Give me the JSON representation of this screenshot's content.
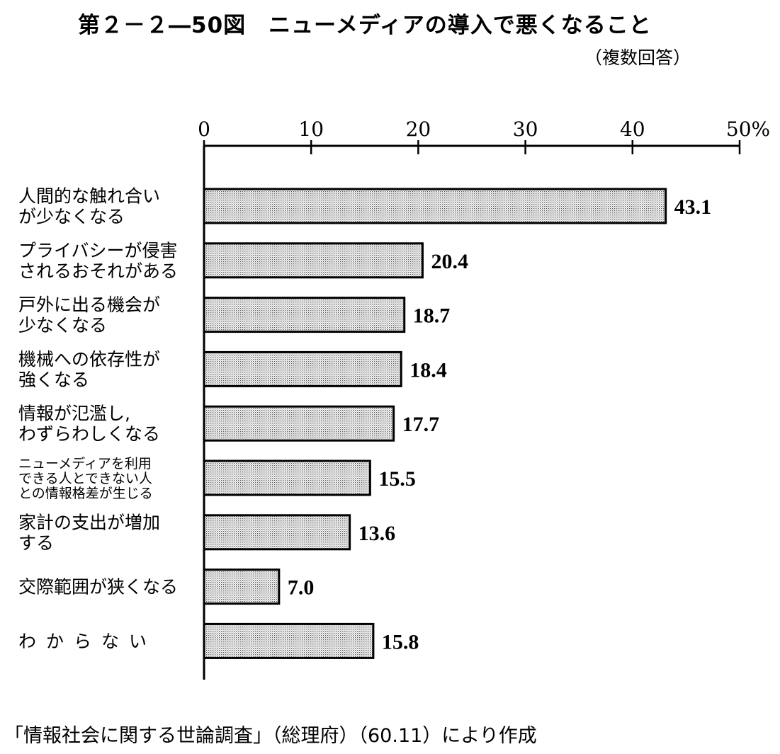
{
  "title": "第２－２―50図　ニューメディアの導入で悪くなること",
  "subtitle": "（複数回答）",
  "source": "「情報社会に関する世論調査」（総理府）（60.11）により作成",
  "chart_data": {
    "type": "bar",
    "orientation": "horizontal",
    "categories": [
      [
        "人間的な触れ合い",
        "が少なくなる"
      ],
      [
        "プライバシーが侵害",
        "されるおそれがある"
      ],
      [
        "戸外に出る機会が",
        "少なくなる"
      ],
      [
        "機械への依存性が",
        "強くなる"
      ],
      [
        "情報が氾濫し,",
        "わずらわしくなる"
      ],
      [
        "ニューメディアを利用",
        "できる人とできない人",
        "との情報格差が生じる"
      ],
      [
        "家計の支出が増加",
        "する"
      ],
      [
        "交際範囲が狭くなる"
      ],
      [
        "わからない"
      ]
    ],
    "values": [
      43.1,
      20.4,
      18.7,
      18.4,
      17.7,
      15.5,
      13.6,
      7.0,
      15.8
    ],
    "value_labels": [
      "43.1",
      "20.4",
      "18.7",
      "18.4",
      "17.7",
      "15.5",
      "13.6",
      "7.0",
      "15.8"
    ],
    "x_ticks": [
      "0",
      "10",
      "20",
      "30",
      "40",
      "50%"
    ],
    "xlim": [
      0,
      50
    ],
    "axis_position": "top",
    "bar_fill": "stippled light gray",
    "grid": false,
    "legend": "none"
  }
}
